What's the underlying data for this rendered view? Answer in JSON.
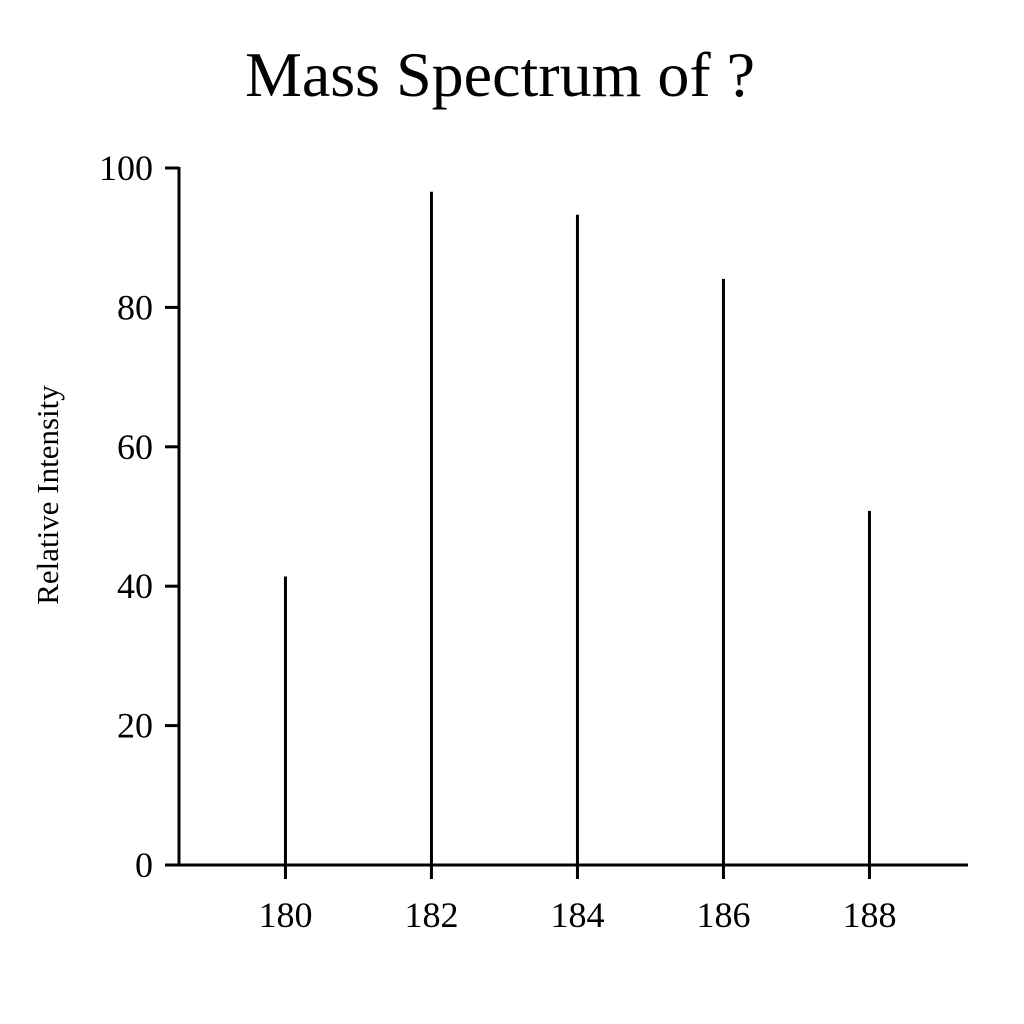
{
  "chart_data": {
    "type": "bar",
    "title": "Mass Spectrum of ?",
    "xlabel": "",
    "ylabel": "Relative Intensity",
    "x": [
      180,
      182,
      184,
      186,
      188
    ],
    "values": [
      41.4,
      96.6,
      93.3,
      84.1,
      50.8
    ],
    "xlim": [
      178.35,
      189.35
    ],
    "ylim": [
      0,
      100
    ],
    "xticks": [
      180,
      182,
      184,
      186,
      188
    ],
    "yticks": [
      0,
      20,
      40,
      60,
      80,
      100
    ],
    "grid": false,
    "bar_color": "#000000"
  }
}
